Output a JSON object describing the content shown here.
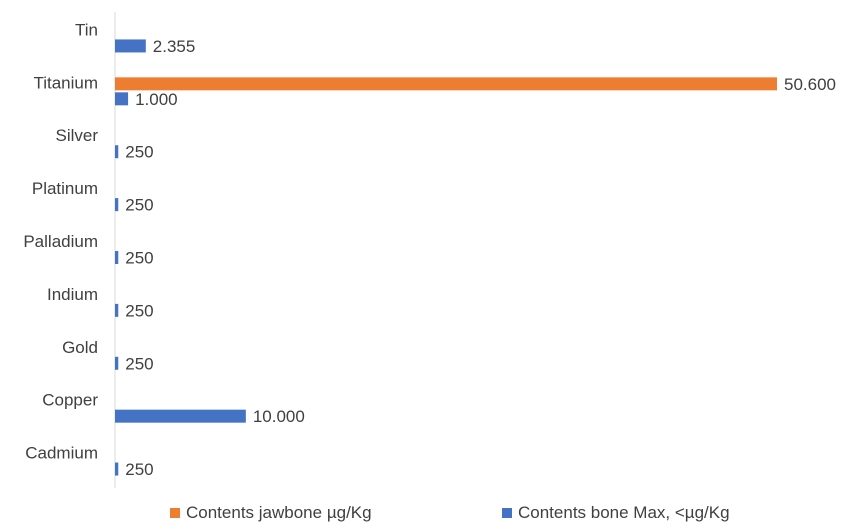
{
  "chart_data": {
    "type": "bar",
    "orientation": "horizontal",
    "categories": [
      "Tin",
      "Titanium",
      "Silver",
      "Platinum",
      "Palladium",
      "Indium",
      "Gold",
      "Copper",
      "Cadmium"
    ],
    "series": [
      {
        "name": "Contents jawbone µg/Kg",
        "color": "#ED7D31",
        "values": [
          null,
          50600,
          null,
          null,
          null,
          null,
          null,
          null,
          null
        ],
        "labels": [
          "",
          "50.600",
          "",
          "",
          "",
          "",
          "",
          "",
          ""
        ]
      },
      {
        "name": "Contents bone Max, <µg/Kg",
        "color": "#4472C4",
        "values": [
          2355,
          1000,
          250,
          250,
          250,
          250,
          250,
          10000,
          250
        ],
        "labels": [
          "2.355",
          "1.000",
          "250",
          "250",
          "250",
          "250",
          "250",
          "10.000",
          "250"
        ]
      }
    ],
    "xlim": [
      0,
      50600
    ],
    "grid": false,
    "legend_position": "bottom"
  }
}
